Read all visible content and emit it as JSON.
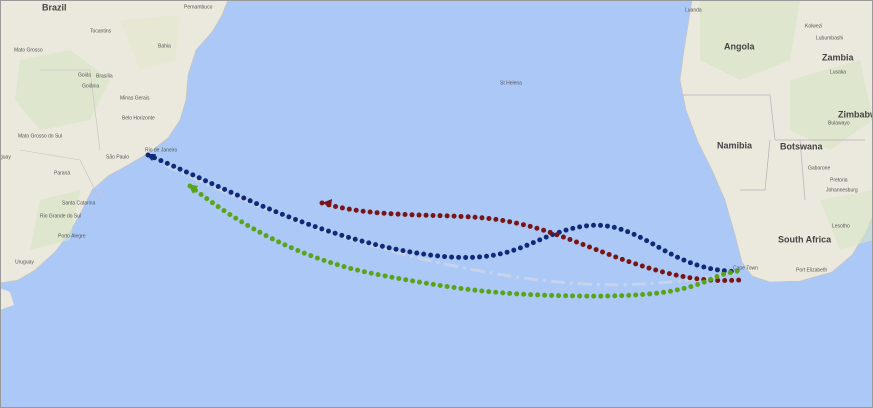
{
  "labels": [
    "Brazil",
    "Pernambuco",
    "Tocantins",
    "Bahia",
    "Mato Grosso",
    "Goiás",
    "Brasília",
    "Goiânia",
    "Minas Gerais",
    "Belo Horizonte",
    "Mato Grosso do Sul",
    "Rio de Janeiro",
    "São Paulo",
    "Paraná",
    "Santa Catarina",
    "Rio Grande do Sul",
    "Porto Alegre",
    "Uruguay",
    "guay",
    "St Helena",
    "Angola",
    "Luanda",
    "Kolwezi",
    "Lubumbashi",
    "Zambia",
    "Lusaka",
    "Zimbabwe",
    "Bulawayo",
    "Namibia",
    "Botswana",
    "Gaborone",
    "Pretoria",
    "Johannesburg",
    "Lesotho",
    "South Africa",
    "Cape Town",
    "Port Elizabeth"
  ]
}
